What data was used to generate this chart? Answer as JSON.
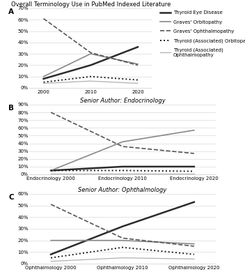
{
  "panel_A": {
    "title": "Overall Terminology Use in PubMed Indexed Literature",
    "years": [
      2000,
      2010,
      2020
    ],
    "xtick_labels": [
      "2000",
      "2010",
      "2020"
    ],
    "ylim": [
      0,
      70
    ],
    "yticks": [
      0,
      10,
      20,
      30,
      40,
      50,
      60,
      70
    ],
    "ytick_labels": [
      "0%",
      "10%",
      "20%",
      "30%",
      "40%",
      "50%",
      "60%",
      "70%"
    ],
    "series": {
      "Thyroid Eye Disease": [
        8,
        20,
        36
      ],
      "Graves Orbitopathy": [
        10,
        30,
        21
      ],
      "Graves Ophthalmopathy": [
        61,
        31,
        20
      ],
      "Thyroid Associated Orbitopathy": [
        5,
        10,
        7
      ],
      "Thyroid Associated Ophthalmopathy": [
        4,
        6,
        4
      ]
    }
  },
  "panel_B": {
    "title": "Senior Author: Endocrinology",
    "years": [
      2000,
      2010,
      2020
    ],
    "xtick_labels": [
      "Endocrinology 2000",
      "Endocrinology 2010",
      "Endocrinology 2020"
    ],
    "ylim": [
      0,
      90
    ],
    "yticks": [
      0,
      10,
      20,
      30,
      40,
      50,
      60,
      70,
      80,
      90
    ],
    "ytick_labels": [
      "0%",
      "10%",
      "20%",
      "30%",
      "40%",
      "50%",
      "60%",
      "70%",
      "80%",
      "90%"
    ],
    "series": {
      "Thyroid Eye Disease": [
        5,
        10,
        10
      ],
      "Graves Orbitopathy": [
        5,
        42,
        57
      ],
      "Graves Ophthalmopathy": [
        80,
        36,
        27
      ],
      "Thyroid Associated Orbitopathy": [
        5,
        5,
        4
      ],
      "Thyroid Associated Ophthalmopathy": [
        1,
        1,
        1
      ]
    }
  },
  "panel_C": {
    "title": "Senior Author: Ophthalmology",
    "years": [
      2000,
      2010,
      2020
    ],
    "xtick_labels": [
      "Ophthalmology 2000",
      "Ophthalmology 2010",
      "Ophthalmology 2020"
    ],
    "ylim": [
      0,
      60
    ],
    "yticks": [
      0,
      10,
      20,
      30,
      40,
      50,
      60
    ],
    "ytick_labels": [
      "0%",
      "10%",
      "20%",
      "30%",
      "40%",
      "50%",
      "60%"
    ],
    "series": {
      "Thyroid Eye Disease": [
        8,
        32,
        53
      ],
      "Graves Orbitopathy": [
        20,
        20,
        17
      ],
      "Graves Ophthalmopathy": [
        51,
        22,
        15
      ],
      "Thyroid Associated Orbitopathy": [
        5,
        14,
        8
      ],
      "Thyroid Associated Ophthalmopathy": [
        2,
        5,
        4
      ]
    }
  },
  "legend_labels": [
    "Thyroid Eye Disease",
    "Graves' Orbitopathy",
    "Graves' Ophthalmopathy",
    "Thyroid (Associated) Orbitopathy",
    "Thyroid (Associated)\nOphthalmopathy"
  ],
  "line_styles": {
    "Thyroid Eye Disease": {
      "color": "#2b2b2b",
      "ls": "-",
      "lw": 1.8
    },
    "Graves Orbitopathy": {
      "color": "#888888",
      "ls": "-",
      "lw": 1.2
    },
    "Graves Ophthalmopathy": {
      "color": "#555555",
      "ls": "--",
      "lw": 1.2
    },
    "Thyroid Associated Orbitopathy": {
      "color": "#1a1a1a",
      "ls": ":",
      "lw": 1.4
    },
    "Thyroid Associated Ophthalmopathy": {
      "color": "#b0b0b0",
      "ls": "-",
      "lw": 0.9
    }
  },
  "bg_color": "#ffffff",
  "tick_fontsize": 5.0,
  "title_fontsize": 6.0,
  "panel_label_fontsize": 7.5,
  "legend_fontsize": 5.0
}
